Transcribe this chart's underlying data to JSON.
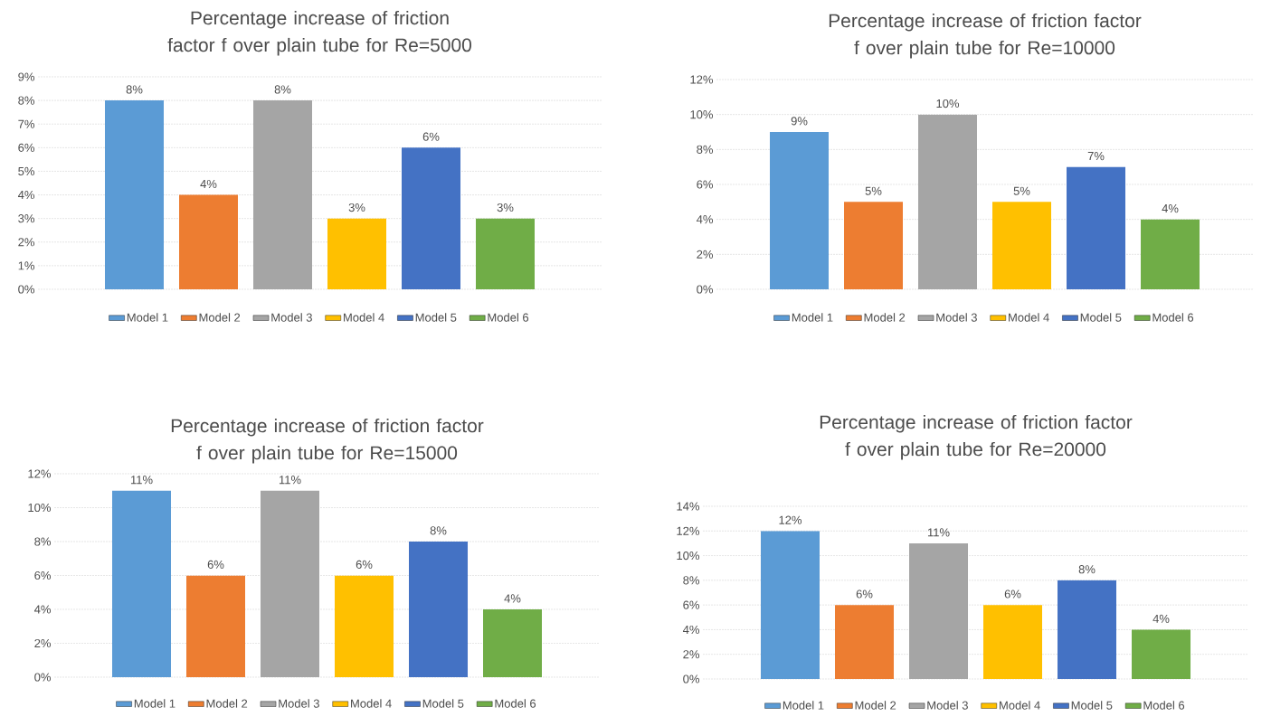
{
  "chart_data": [
    {
      "type": "bar",
      "title": "Percentage increase of friction factor f over plain tube for Re=5000",
      "categories": [
        null
      ],
      "ylim": [
        0,
        9
      ],
      "yticks": [
        {
          "value": 0,
          "label": "0%"
        },
        {
          "value": 1,
          "label": "1%"
        },
        {
          "value": 2,
          "label": "2%"
        },
        {
          "value": 3,
          "label": "3%"
        },
        {
          "value": 4,
          "label": "4%"
        },
        {
          "value": 5,
          "label": "5%"
        },
        {
          "value": 6,
          "label": "6%"
        },
        {
          "value": 7,
          "label": "7%"
        },
        {
          "value": 8,
          "label": "8%"
        },
        {
          "value": 9,
          "label": "9%"
        }
      ],
      "grid": "y",
      "legend": "bottom",
      "series": [
        {
          "name": "Model 1",
          "color": "#5b9bd5",
          "values": [
            8
          ],
          "value_labels": [
            "8%"
          ]
        },
        {
          "name": "Model 2",
          "color": "#ed7d31",
          "values": [
            4
          ],
          "value_labels": [
            "4%"
          ]
        },
        {
          "name": "Model 3",
          "color": "#a5a5a5",
          "values": [
            8
          ],
          "value_labels": [
            "8%"
          ]
        },
        {
          "name": "Model 4",
          "color": "#ffc000",
          "values": [
            3
          ],
          "value_labels": [
            "3%"
          ]
        },
        {
          "name": "Model 5",
          "color": "#4472c4",
          "values": [
            6
          ],
          "value_labels": [
            "6%"
          ]
        },
        {
          "name": "Model 6",
          "color": "#70ad47",
          "values": [
            3
          ],
          "value_labels": [
            "3%"
          ]
        }
      ]
    },
    {
      "type": "bar",
      "title": "Percentage increase of friction factor f over plain tube for Re=10000",
      "categories": [
        null
      ],
      "ylim": [
        0,
        12
      ],
      "yticks": [
        {
          "value": 0,
          "label": "0%"
        },
        {
          "value": 2,
          "label": "2%"
        },
        {
          "value": 4,
          "label": "4%"
        },
        {
          "value": 6,
          "label": "6%"
        },
        {
          "value": 8,
          "label": "8%"
        },
        {
          "value": 10,
          "label": "10%"
        },
        {
          "value": 12,
          "label": "12%"
        }
      ],
      "grid": "y",
      "legend": "bottom",
      "series": [
        {
          "name": "Model 1",
          "color": "#5b9bd5",
          "values": [
            9
          ],
          "value_labels": [
            "9%"
          ]
        },
        {
          "name": "Model 2",
          "color": "#ed7d31",
          "values": [
            5
          ],
          "value_labels": [
            "5%"
          ]
        },
        {
          "name": "Model 3",
          "color": "#a5a5a5",
          "values": [
            10
          ],
          "value_labels": [
            "10%"
          ]
        },
        {
          "name": "Model 4",
          "color": "#ffc000",
          "values": [
            5
          ],
          "value_labels": [
            "5%"
          ]
        },
        {
          "name": "Model 5",
          "color": "#4472c4",
          "values": [
            7
          ],
          "value_labels": [
            "7%"
          ]
        },
        {
          "name": "Model 6",
          "color": "#70ad47",
          "values": [
            4
          ],
          "value_labels": [
            "4%"
          ]
        }
      ]
    },
    {
      "type": "bar",
      "title": "Percentage increase of friction factor f over plain tube for Re=15000",
      "categories": [
        null
      ],
      "ylim": [
        0,
        12
      ],
      "yticks": [
        {
          "value": 0,
          "label": "0%"
        },
        {
          "value": 2,
          "label": "2%"
        },
        {
          "value": 4,
          "label": "4%"
        },
        {
          "value": 6,
          "label": "6%"
        },
        {
          "value": 8,
          "label": "8%"
        },
        {
          "value": 10,
          "label": "10%"
        },
        {
          "value": 12,
          "label": "12%"
        }
      ],
      "grid": "y",
      "legend": "bottom",
      "series": [
        {
          "name": "Model 1",
          "color": "#5b9bd5",
          "values": [
            11
          ],
          "value_labels": [
            "11%"
          ]
        },
        {
          "name": "Model 2",
          "color": "#ed7d31",
          "values": [
            6
          ],
          "value_labels": [
            "6%"
          ]
        },
        {
          "name": "Model 3",
          "color": "#a5a5a5",
          "values": [
            11
          ],
          "value_labels": [
            "11%"
          ]
        },
        {
          "name": "Model 4",
          "color": "#ffc000",
          "values": [
            6
          ],
          "value_labels": [
            "6%"
          ]
        },
        {
          "name": "Model 5",
          "color": "#4472c4",
          "values": [
            8
          ],
          "value_labels": [
            "8%"
          ]
        },
        {
          "name": "Model 6",
          "color": "#70ad47",
          "values": [
            4
          ],
          "value_labels": [
            "4%"
          ]
        }
      ]
    },
    {
      "type": "bar",
      "title": "Percentage increase of friction factor f over plain tube for Re=20000",
      "categories": [
        null
      ],
      "ylim": [
        0,
        14
      ],
      "yticks": [
        {
          "value": 0,
          "label": "0%"
        },
        {
          "value": 2,
          "label": "2%"
        },
        {
          "value": 4,
          "label": "4%"
        },
        {
          "value": 6,
          "label": "6%"
        },
        {
          "value": 8,
          "label": "8%"
        },
        {
          "value": 10,
          "label": "10%"
        },
        {
          "value": 12,
          "label": "12%"
        },
        {
          "value": 14,
          "label": "14%"
        }
      ],
      "grid": "y",
      "legend": "bottom",
      "series": [
        {
          "name": "Model 1",
          "color": "#5b9bd5",
          "values": [
            12
          ],
          "value_labels": [
            "12%"
          ]
        },
        {
          "name": "Model 2",
          "color": "#ed7d31",
          "values": [
            6
          ],
          "value_labels": [
            "6%"
          ]
        },
        {
          "name": "Model 3",
          "color": "#a5a5a5",
          "values": [
            11
          ],
          "value_labels": [
            "11%"
          ]
        },
        {
          "name": "Model 4",
          "color": "#ffc000",
          "values": [
            6
          ],
          "value_labels": [
            "6%"
          ]
        },
        {
          "name": "Model 5",
          "color": "#4472c4",
          "values": [
            8
          ],
          "value_labels": [
            "8%"
          ]
        },
        {
          "name": "Model 6",
          "color": "#70ad47",
          "values": [
            4
          ],
          "value_labels": [
            "4%"
          ]
        }
      ]
    }
  ]
}
